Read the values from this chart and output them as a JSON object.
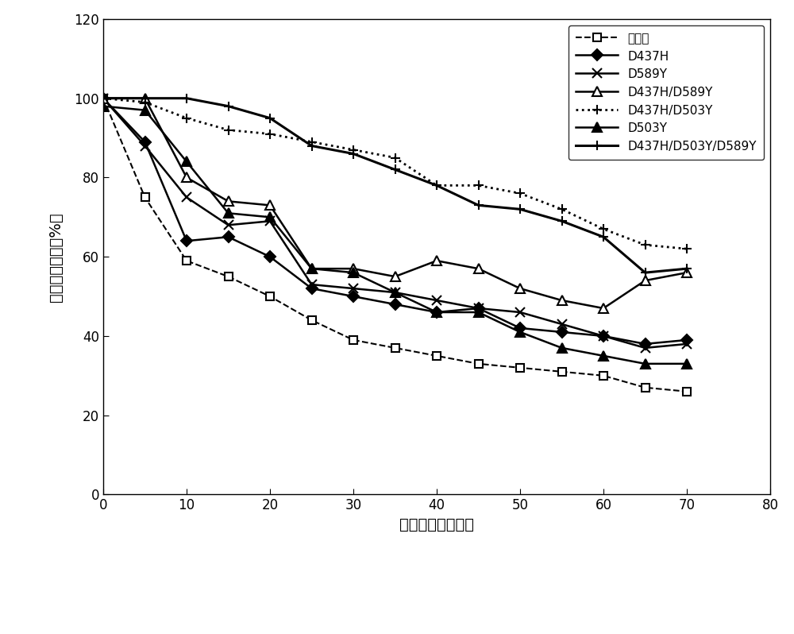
{
  "series": [
    {
      "label": "野生型",
      "x": [
        0,
        5,
        10,
        15,
        20,
        25,
        30,
        35,
        40,
        45,
        50,
        55,
        60,
        65,
        70
      ],
      "y": [
        100,
        75,
        59,
        55,
        50,
        44,
        39,
        37,
        35,
        33,
        32,
        31,
        30,
        27,
        26
      ],
      "color": "black",
      "linestyle": "--",
      "marker": "s",
      "markerfacecolor": "white",
      "markersize": 7,
      "linewidth": 1.5
    },
    {
      "label": "D437H",
      "x": [
        0,
        5,
        10,
        15,
        20,
        25,
        30,
        35,
        40,
        45,
        50,
        55,
        60,
        65,
        70
      ],
      "y": [
        100,
        89,
        64,
        65,
        60,
        52,
        50,
        48,
        46,
        47,
        42,
        41,
        40,
        38,
        39
      ],
      "color": "black",
      "linestyle": "-",
      "marker": "D",
      "markerfacecolor": "black",
      "markersize": 7,
      "linewidth": 1.8
    },
    {
      "label": "D589Y",
      "x": [
        0,
        5,
        10,
        15,
        20,
        25,
        30,
        35,
        40,
        45,
        50,
        55,
        60,
        65,
        70
      ],
      "y": [
        100,
        88,
        75,
        68,
        69,
        53,
        52,
        51,
        49,
        47,
        46,
        43,
        40,
        37,
        38
      ],
      "color": "black",
      "linestyle": "-",
      "marker": "x",
      "markerfacecolor": "black",
      "markersize": 8,
      "linewidth": 1.8
    },
    {
      "label": "D437H/D589Y",
      "x": [
        0,
        5,
        10,
        15,
        20,
        25,
        30,
        35,
        40,
        45,
        50,
        55,
        60,
        65,
        70
      ],
      "y": [
        100,
        100,
        80,
        74,
        73,
        57,
        57,
        55,
        59,
        57,
        52,
        49,
        47,
        54,
        56
      ],
      "color": "black",
      "linestyle": "-",
      "marker": "^",
      "markerfacecolor": "white",
      "markersize": 8,
      "linewidth": 1.8
    },
    {
      "label": "D437H/D503Y",
      "x": [
        0,
        5,
        10,
        15,
        20,
        25,
        30,
        35,
        40,
        45,
        50,
        55,
        60,
        65,
        70
      ],
      "y": [
        100,
        99,
        95,
        92,
        91,
        89,
        87,
        85,
        78,
        78,
        76,
        72,
        67,
        63,
        62
      ],
      "color": "black",
      "linestyle": ":",
      "marker": "+",
      "markerfacecolor": "black",
      "markersize": 9,
      "linewidth": 2.0
    },
    {
      "label": "D503Y",
      "x": [
        0,
        5,
        10,
        15,
        20,
        25,
        30,
        35,
        40,
        45,
        50,
        55,
        60,
        65,
        70
      ],
      "y": [
        98,
        97,
        84,
        71,
        70,
        57,
        56,
        51,
        46,
        46,
        41,
        37,
        35,
        33,
        33
      ],
      "color": "black",
      "linestyle": "-",
      "marker": "^",
      "markerfacecolor": "black",
      "markersize": 8,
      "linewidth": 1.8
    },
    {
      "label": "D437H/D503Y/D589Y",
      "x": [
        0,
        5,
        10,
        15,
        20,
        25,
        30,
        35,
        40,
        45,
        50,
        55,
        60,
        65,
        70
      ],
      "y": [
        100,
        100,
        100,
        98,
        95,
        88,
        86,
        82,
        78,
        73,
        72,
        69,
        65,
        56,
        57
      ],
      "color": "black",
      "linestyle": "-",
      "marker": "+",
      "markerfacecolor": "black",
      "markersize": 9,
      "linewidth": 2.2
    }
  ],
  "xlabel": "保温时间（小时）",
  "ylabel": "残留相对酶活（%）",
  "xlim": [
    0,
    80
  ],
  "ylim": [
    0,
    120
  ],
  "xticks": [
    0,
    10,
    20,
    30,
    40,
    50,
    60,
    70,
    80
  ],
  "yticks": [
    0,
    20,
    40,
    60,
    80,
    100,
    120
  ],
  "background_color": "#ffffff",
  "figsize": [
    10.0,
    7.98
  ],
  "dpi": 100
}
